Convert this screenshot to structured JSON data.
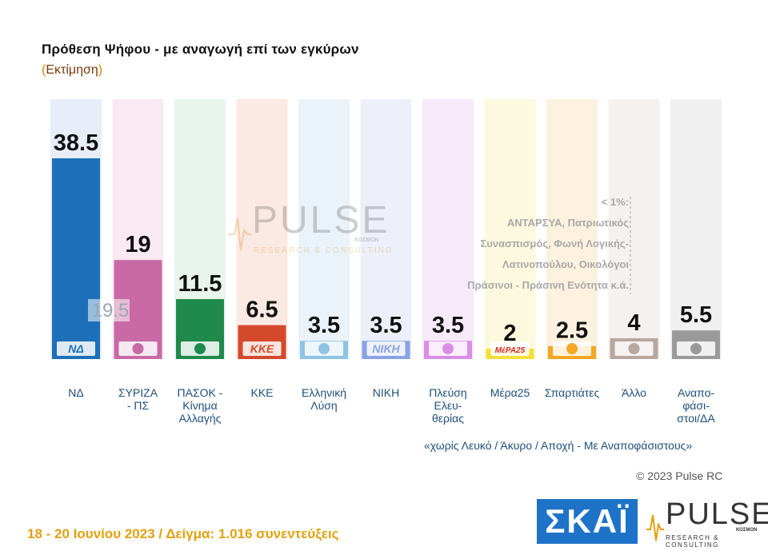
{
  "header": {
    "title": "Πρόθεση Ψήφου - με αναγωγή επί των εγκύρων",
    "subtitle_open": "(",
    "subtitle_text": "Εκτίμηση",
    "subtitle_close": ")"
  },
  "chart_data": {
    "type": "bar",
    "categories": [
      "ΝΔ",
      "ΣΥΡΙΖΑ - ΠΣ",
      "ΠΑΣΟΚ - Κίνημα Αλλαγής",
      "ΚΚΕ",
      "Ελληνική Λύση",
      "ΝΙΚΗ",
      "Πλεύση Ελευθερίας",
      "Μέρα25",
      "Σπαρτιάτες",
      "Άλλο",
      "Αναποφάσιστοι/ΔΑ"
    ],
    "category_lines": [
      [
        "ΝΔ"
      ],
      [
        "ΣΥΡΙΖΑ",
        "- ΠΣ"
      ],
      [
        "ΠΑΣΟΚ -",
        "Κίνημα",
        "Αλλαγής"
      ],
      [
        "ΚΚΕ"
      ],
      [
        "Ελληνική",
        "Λύση"
      ],
      [
        "ΝΙΚΗ"
      ],
      [
        "Πλεύση",
        "Ελευ-",
        "θερίας"
      ],
      [
        "Μέρα25"
      ],
      [
        "Σπαρτιάτες"
      ],
      [
        "Άλλο"
      ],
      [
        "Αναπο-",
        "φάσι-",
        "στοι/ΔΑ"
      ]
    ],
    "values": [
      38.5,
      19,
      11.5,
      6.5,
      3.5,
      3.5,
      3.5,
      2,
      2.5,
      4,
      5.5
    ],
    "value_labels": [
      "38.5",
      "19",
      "11.5",
      "6.5",
      "3.5",
      "3.5",
      "3.5",
      "2",
      "2.5",
      "4",
      "5.5"
    ],
    "bar_colors": [
      "#1c6fb8",
      "#c96aa6",
      "#1f8a4c",
      "#d4492a",
      "#8fc3e6",
      "#8aa2e6",
      "#d98ee6",
      "#f2e13a",
      "#f5a623",
      "#b8a79e",
      "#9a9a9a"
    ],
    "column_bg_colors": [
      "#e7eefa",
      "#f9e9f2",
      "#e8f4ec",
      "#fbe9e3",
      "#eaf3fa",
      "#edf0fb",
      "#f6eafa",
      "#fdf9df",
      "#fdf1df",
      "#f4f1ef",
      "#f0f0f0"
    ],
    "logo_labels": [
      "ΝΔ",
      "",
      "",
      "ΚΚΕ",
      "",
      "ΝΙΚΗ",
      "",
      "ΜέΡΑ25",
      "",
      "",
      ""
    ],
    "ylim": [
      0,
      40
    ],
    "annotation": {
      "value": "19.5",
      "category": "ΝΔ"
    }
  },
  "watermark": {
    "word": "PULSE",
    "sub": "RESEARCH & CONSULTING",
    "small": "ΚΟΣΜΟΝ"
  },
  "note_small_parties": {
    "lines": [
      "< 1%:",
      "ΑΝΤΑΡΣΥΑ, Πατριωτικός",
      "Συνασπισμός, Φωνή Λογικής-",
      "Λατινοπούλου, Οικολόγοι",
      "Πράσινοι - Πράσινη Ενότητα   κ.ά."
    ]
  },
  "footnote": "«χωρίς Λευκό / Άκυρο / Αποχή - Με Αναποφάσιστους»",
  "copyright": "© 2023 Pulse RC",
  "dates": "18 - 20  Ιουνίου  2023  /  Δείγμα:  1.016 συνεντεύξεις",
  "logos": {
    "skai": "ΣΚΑΪ",
    "pulse_word": "PULSE",
    "pulse_sub": "RESEARCH & CONSULTING",
    "pulse_small": "ΚΟΣΜΟΝ",
    "accent": "#e0a10e"
  }
}
